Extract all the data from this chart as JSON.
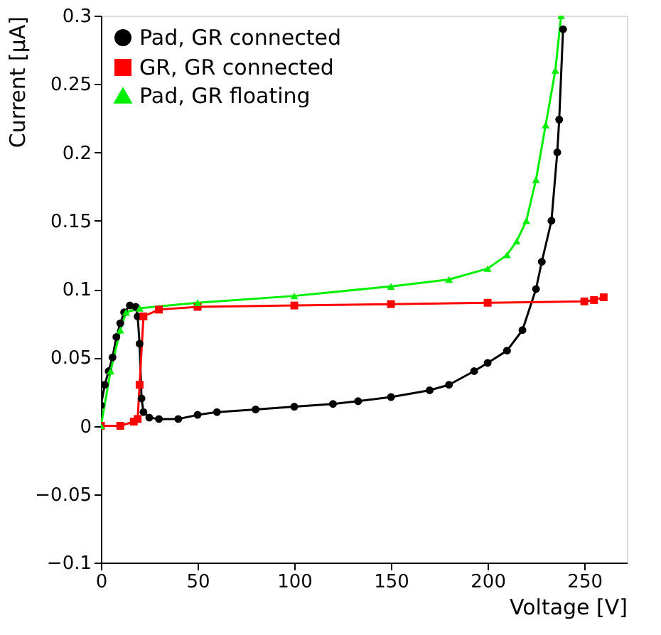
{
  "chart_data": {
    "type": "line",
    "xlabel": "Voltage [V]",
    "ylabel": "Current [μA]",
    "xlim": [
      0,
      272
    ],
    "ylim": [
      -0.1,
      0.3
    ],
    "xticks": [
      0,
      50,
      100,
      150,
      200,
      250
    ],
    "yticks": [
      -0.1,
      -0.05,
      0,
      0.05,
      0.1,
      0.15,
      0.2,
      0.25,
      0.3
    ],
    "grid": false,
    "legend": "top left",
    "series": [
      {
        "name": "Pad, GR connected",
        "color": "#000000",
        "marker": "circle",
        "x": [
          0,
          2,
          4,
          6,
          8,
          10,
          12,
          15,
          18,
          19,
          20,
          21,
          22,
          25,
          30,
          40,
          50,
          60,
          80,
          100,
          120,
          133,
          150,
          170,
          180,
          193,
          200,
          210,
          218,
          225,
          228,
          233,
          236,
          237,
          239
        ],
        "values": [
          0.015,
          0.03,
          0.04,
          0.05,
          0.065,
          0.075,
          0.083,
          0.088,
          0.087,
          0.08,
          0.06,
          0.02,
          0.01,
          0.006,
          0.005,
          0.005,
          0.008,
          0.01,
          0.012,
          0.014,
          0.016,
          0.018,
          0.021,
          0.026,
          0.03,
          0.04,
          0.046,
          0.055,
          0.07,
          0.1,
          0.12,
          0.15,
          0.2,
          0.224,
          0.29
        ]
      },
      {
        "name": "GR, GR connected",
        "color": "#ff0000",
        "marker": "square",
        "x": [
          0,
          10,
          17,
          19,
          20,
          22,
          30,
          50,
          100,
          150,
          200,
          250,
          255,
          260
        ],
        "values": [
          0,
          0,
          0.003,
          0.005,
          0.03,
          0.08,
          0.085,
          0.087,
          0.088,
          0.089,
          0.09,
          0.091,
          0.092,
          0.094
        ]
      },
      {
        "name": "Pad, GR floating",
        "color": "#00ee00",
        "marker": "triangle",
        "x": [
          0,
          5,
          10,
          13,
          20,
          50,
          100,
          150,
          180,
          200,
          210,
          215,
          220,
          225,
          230,
          235,
          238
        ],
        "values": [
          0,
          0.04,
          0.07,
          0.083,
          0.086,
          0.09,
          0.095,
          0.102,
          0.107,
          0.115,
          0.125,
          0.135,
          0.15,
          0.18,
          0.22,
          0.26,
          0.3
        ]
      }
    ]
  }
}
